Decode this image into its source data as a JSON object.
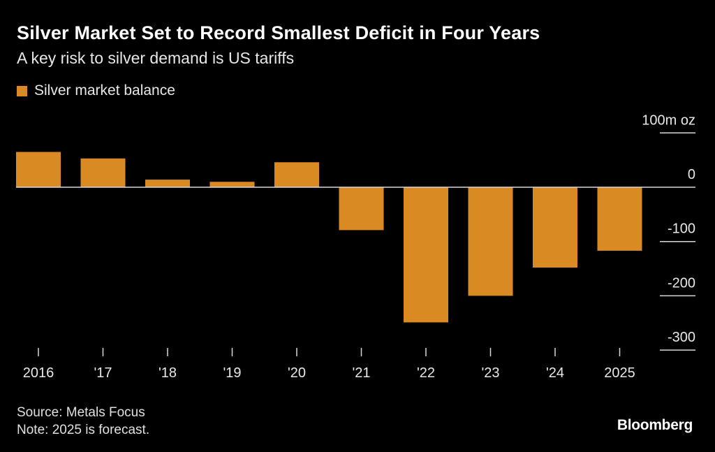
{
  "title": "Silver Market Set to Record Smallest Deficit in Four Years",
  "subtitle": "A key risk to silver demand is US tariffs",
  "source": "Source: Metals Focus",
  "note": "Note: 2025 is forecast.",
  "logo": "Bloomberg",
  "colors": {
    "bar": "#DA8A22",
    "background": "#000000",
    "axis": "#d8d8d8"
  },
  "chart_data": {
    "type": "bar",
    "title": "Silver Market Set to Record Smallest Deficit in Four Years",
    "subtitle": "A key risk to silver demand is US tariffs",
    "categories": [
      "2016",
      "'17",
      "'18",
      "'19",
      "'20",
      "'21",
      "'22",
      "'23",
      "'24",
      "2025"
    ],
    "series": [
      {
        "name": "Silver market balance",
        "values": [
          65,
          53,
          14,
          10,
          46,
          -79,
          -249,
          -200,
          -148,
          -117
        ]
      }
    ],
    "yunit": "100m oz",
    "yticks": [
      100,
      0,
      -100,
      -200,
      -300
    ],
    "ytick_labels": [
      "100m oz",
      "0",
      "-100",
      "-200",
      "-300"
    ],
    "ylim": [
      -300,
      100
    ],
    "legend": "top-left",
    "grid": false
  }
}
